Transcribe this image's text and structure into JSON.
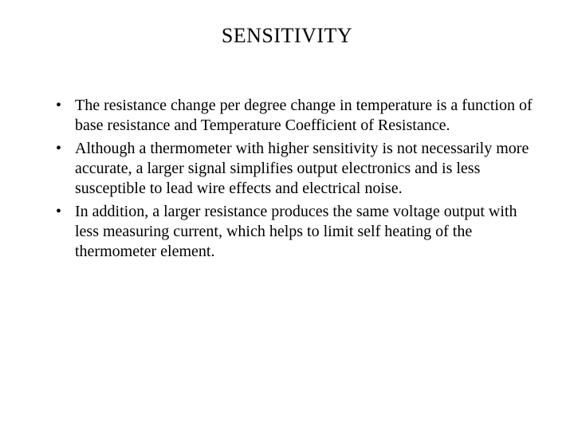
{
  "title": "SENSITIVITY",
  "bullets": [
    "The resistance change per degree change in temperature is a function of base resistance and Temperature Coefficient of Resistance.",
    "Although a thermometer with higher sensitivity is not necessarily more accurate, a larger signal simplifies output electronics and is less susceptible to lead wire effects and electrical noise.",
    "In addition, a larger resistance produces the same voltage output with less measuring current, which helps to limit self heating of the thermometer element."
  ],
  "colors": {
    "background": "#ffffff",
    "text": "#000000"
  },
  "typography": {
    "title_fontsize": 26,
    "body_fontsize": 20,
    "font_family": "Times New Roman"
  }
}
